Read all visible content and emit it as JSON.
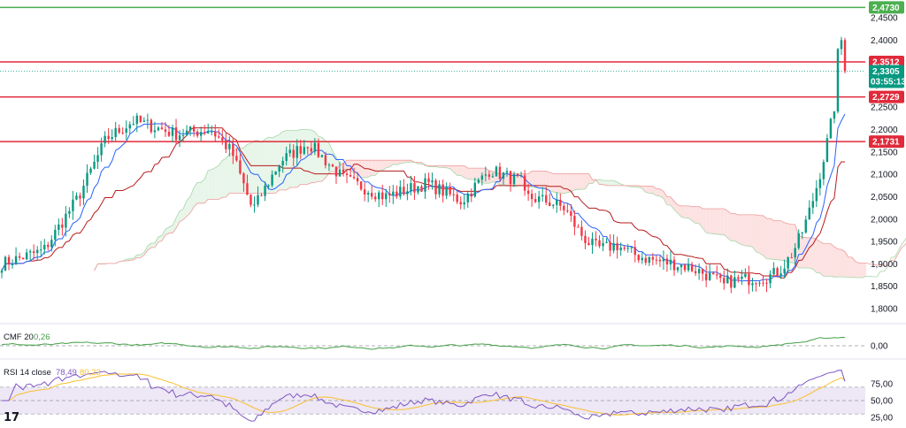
{
  "colors": {
    "up": "#089981",
    "down": "#f23645",
    "resistance": "#e02a3a",
    "top_line": "#4caf50",
    "tenkan": "#2962ff",
    "kijun": "#b71c1c",
    "senkou_a": "#a5d6a7",
    "senkou_b": "#ef9a9a",
    "cloud_bull": "#e8f5e9",
    "cloud_bear": "#fde2e2",
    "cmf": "#43a047",
    "rsi": "#7e57c2",
    "rsi_ma": "#fbc02d",
    "rsi_band": "#ede7f6",
    "price_badge": "#089981"
  },
  "price_axis": {
    "ticks": [
      "2,4500",
      "2,4000",
      "2,3500",
      "2,3000",
      "2,2500",
      "2,2000",
      "2,1500",
      "2,1000",
      "2,0500",
      "2,0000",
      "1,9500",
      "1,9000",
      "1,8500",
      "1,8000"
    ],
    "tick_values": [
      2.45,
      2.4,
      2.35,
      2.3,
      2.25,
      2.2,
      2.15,
      2.1,
      2.05,
      2.0,
      1.95,
      1.9,
      1.85,
      1.8
    ]
  },
  "levels": [
    {
      "name": "top-level",
      "value": 2.473,
      "label": "2,4730",
      "kind": "green"
    },
    {
      "name": "resistance-1",
      "value": 2.3512,
      "label": "2,3512",
      "kind": "red"
    },
    {
      "name": "resistance-2",
      "value": 2.2729,
      "label": "2,2729",
      "kind": "red"
    },
    {
      "name": "resistance-3",
      "value": 2.1731,
      "label": "2,1731",
      "kind": "red"
    }
  ],
  "last_price": {
    "value": 2.3305,
    "label": "2,3305",
    "countdown": "03:55:13"
  },
  "cmf": {
    "title": "CMF 20",
    "value": "0,26",
    "zero_label": "0,00"
  },
  "rsi": {
    "title": "RSI 14 close",
    "value": "78,49",
    "ma_value": "80,23",
    "ticks": [
      "75,00",
      "50,00",
      "25,00"
    ],
    "tick_values": [
      75,
      50,
      25
    ]
  },
  "logo_text": "17",
  "chart_data": {
    "type": "candlestick",
    "title": "",
    "ylim": [
      1.77,
      2.49
    ],
    "start_close": 1.9,
    "candle_count": 238,
    "note_series": [
      "price",
      "ichimoku",
      "cmf",
      "rsi"
    ]
  }
}
